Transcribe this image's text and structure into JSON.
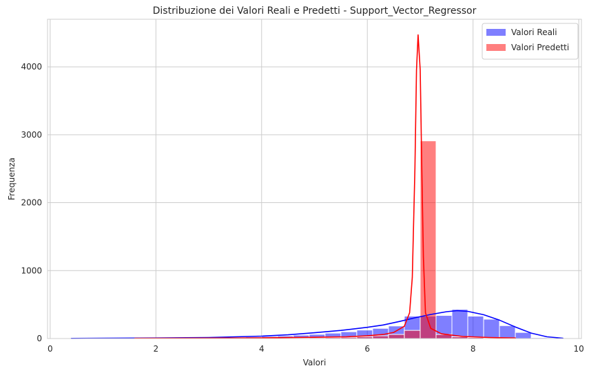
{
  "chart_data": {
    "type": "bar",
    "title": "Distribuzione dei Valori Reali e Predetti - Support_Vector_Regressor",
    "xlabel": "Valori",
    "ylabel": "Frequenza",
    "xlim": [
      -0.05,
      10.05
    ],
    "ylim": [
      0,
      4700
    ],
    "xticks": [
      0,
      2,
      4,
      6,
      8,
      10
    ],
    "yticks": [
      0,
      1000,
      2000,
      3000,
      4000
    ],
    "grid": true,
    "legend_position": "top-right",
    "series": [
      {
        "name": "Valori Reali",
        "color": "#0000ff",
        "bin_edges": [
          0.4,
          0.7,
          1.0,
          1.3,
          1.6,
          1.9,
          2.2,
          2.5,
          2.8,
          3.1,
          3.4,
          3.7,
          4.0,
          4.3,
          4.6,
          4.9,
          5.2,
          5.5,
          5.8,
          6.1,
          6.4,
          6.7,
          7.0,
          7.3,
          7.6,
          7.9,
          8.2,
          8.5,
          8.8,
          9.1,
          9.4,
          9.7
        ],
        "values": [
          2,
          1,
          2,
          3,
          4,
          5,
          7,
          8,
          10,
          14,
          18,
          24,
          30,
          38,
          50,
          62,
          80,
          100,
          125,
          150,
          185,
          330,
          330,
          340,
          430,
          330,
          285,
          190,
          90,
          12,
          3
        ],
        "kde": {
          "x": [
            0.4,
            1.0,
            2.0,
            3.0,
            4.0,
            4.5,
            5.0,
            5.5,
            6.0,
            6.3,
            6.6,
            6.9,
            7.2,
            7.5,
            7.7,
            7.9,
            8.2,
            8.5,
            8.8,
            9.1,
            9.4,
            9.7
          ],
          "y": [
            2,
            4,
            8,
            15,
            35,
            55,
            85,
            120,
            165,
            200,
            250,
            305,
            355,
            395,
            410,
            400,
            350,
            270,
            170,
            80,
            25,
            5
          ]
        }
      },
      {
        "name": "Valori Predetti",
        "color": "#ff0000",
        "bin_edges": [
          1.6,
          1.9,
          2.2,
          2.5,
          2.8,
          3.1,
          3.4,
          3.7,
          4.0,
          4.3,
          4.6,
          4.9,
          5.2,
          5.5,
          5.8,
          6.1,
          6.4,
          6.7,
          7.0,
          7.3,
          7.6,
          7.9,
          8.2,
          8.5,
          8.8
        ],
        "values": [
          2,
          2,
          3,
          3,
          4,
          5,
          6,
          7,
          8,
          9,
          10,
          12,
          14,
          18,
          25,
          40,
          60,
          120,
          2910,
          60,
          25,
          15,
          8,
          5
        ],
        "kde": {
          "x": [
            1.6,
            3.0,
            4.0,
            5.0,
            5.6,
            6.0,
            6.3,
            6.5,
            6.7,
            6.8,
            6.85,
            6.9,
            6.93,
            6.96,
            7.0,
            7.03,
            7.06,
            7.1,
            7.2,
            7.4,
            7.8,
            8.3,
            8.8
          ],
          "y": [
            3,
            6,
            10,
            18,
            25,
            40,
            60,
            90,
            180,
            380,
            900,
            2500,
            3950,
            4470,
            3950,
            2500,
            1200,
            380,
            150,
            70,
            30,
            15,
            8
          ]
        }
      }
    ]
  }
}
